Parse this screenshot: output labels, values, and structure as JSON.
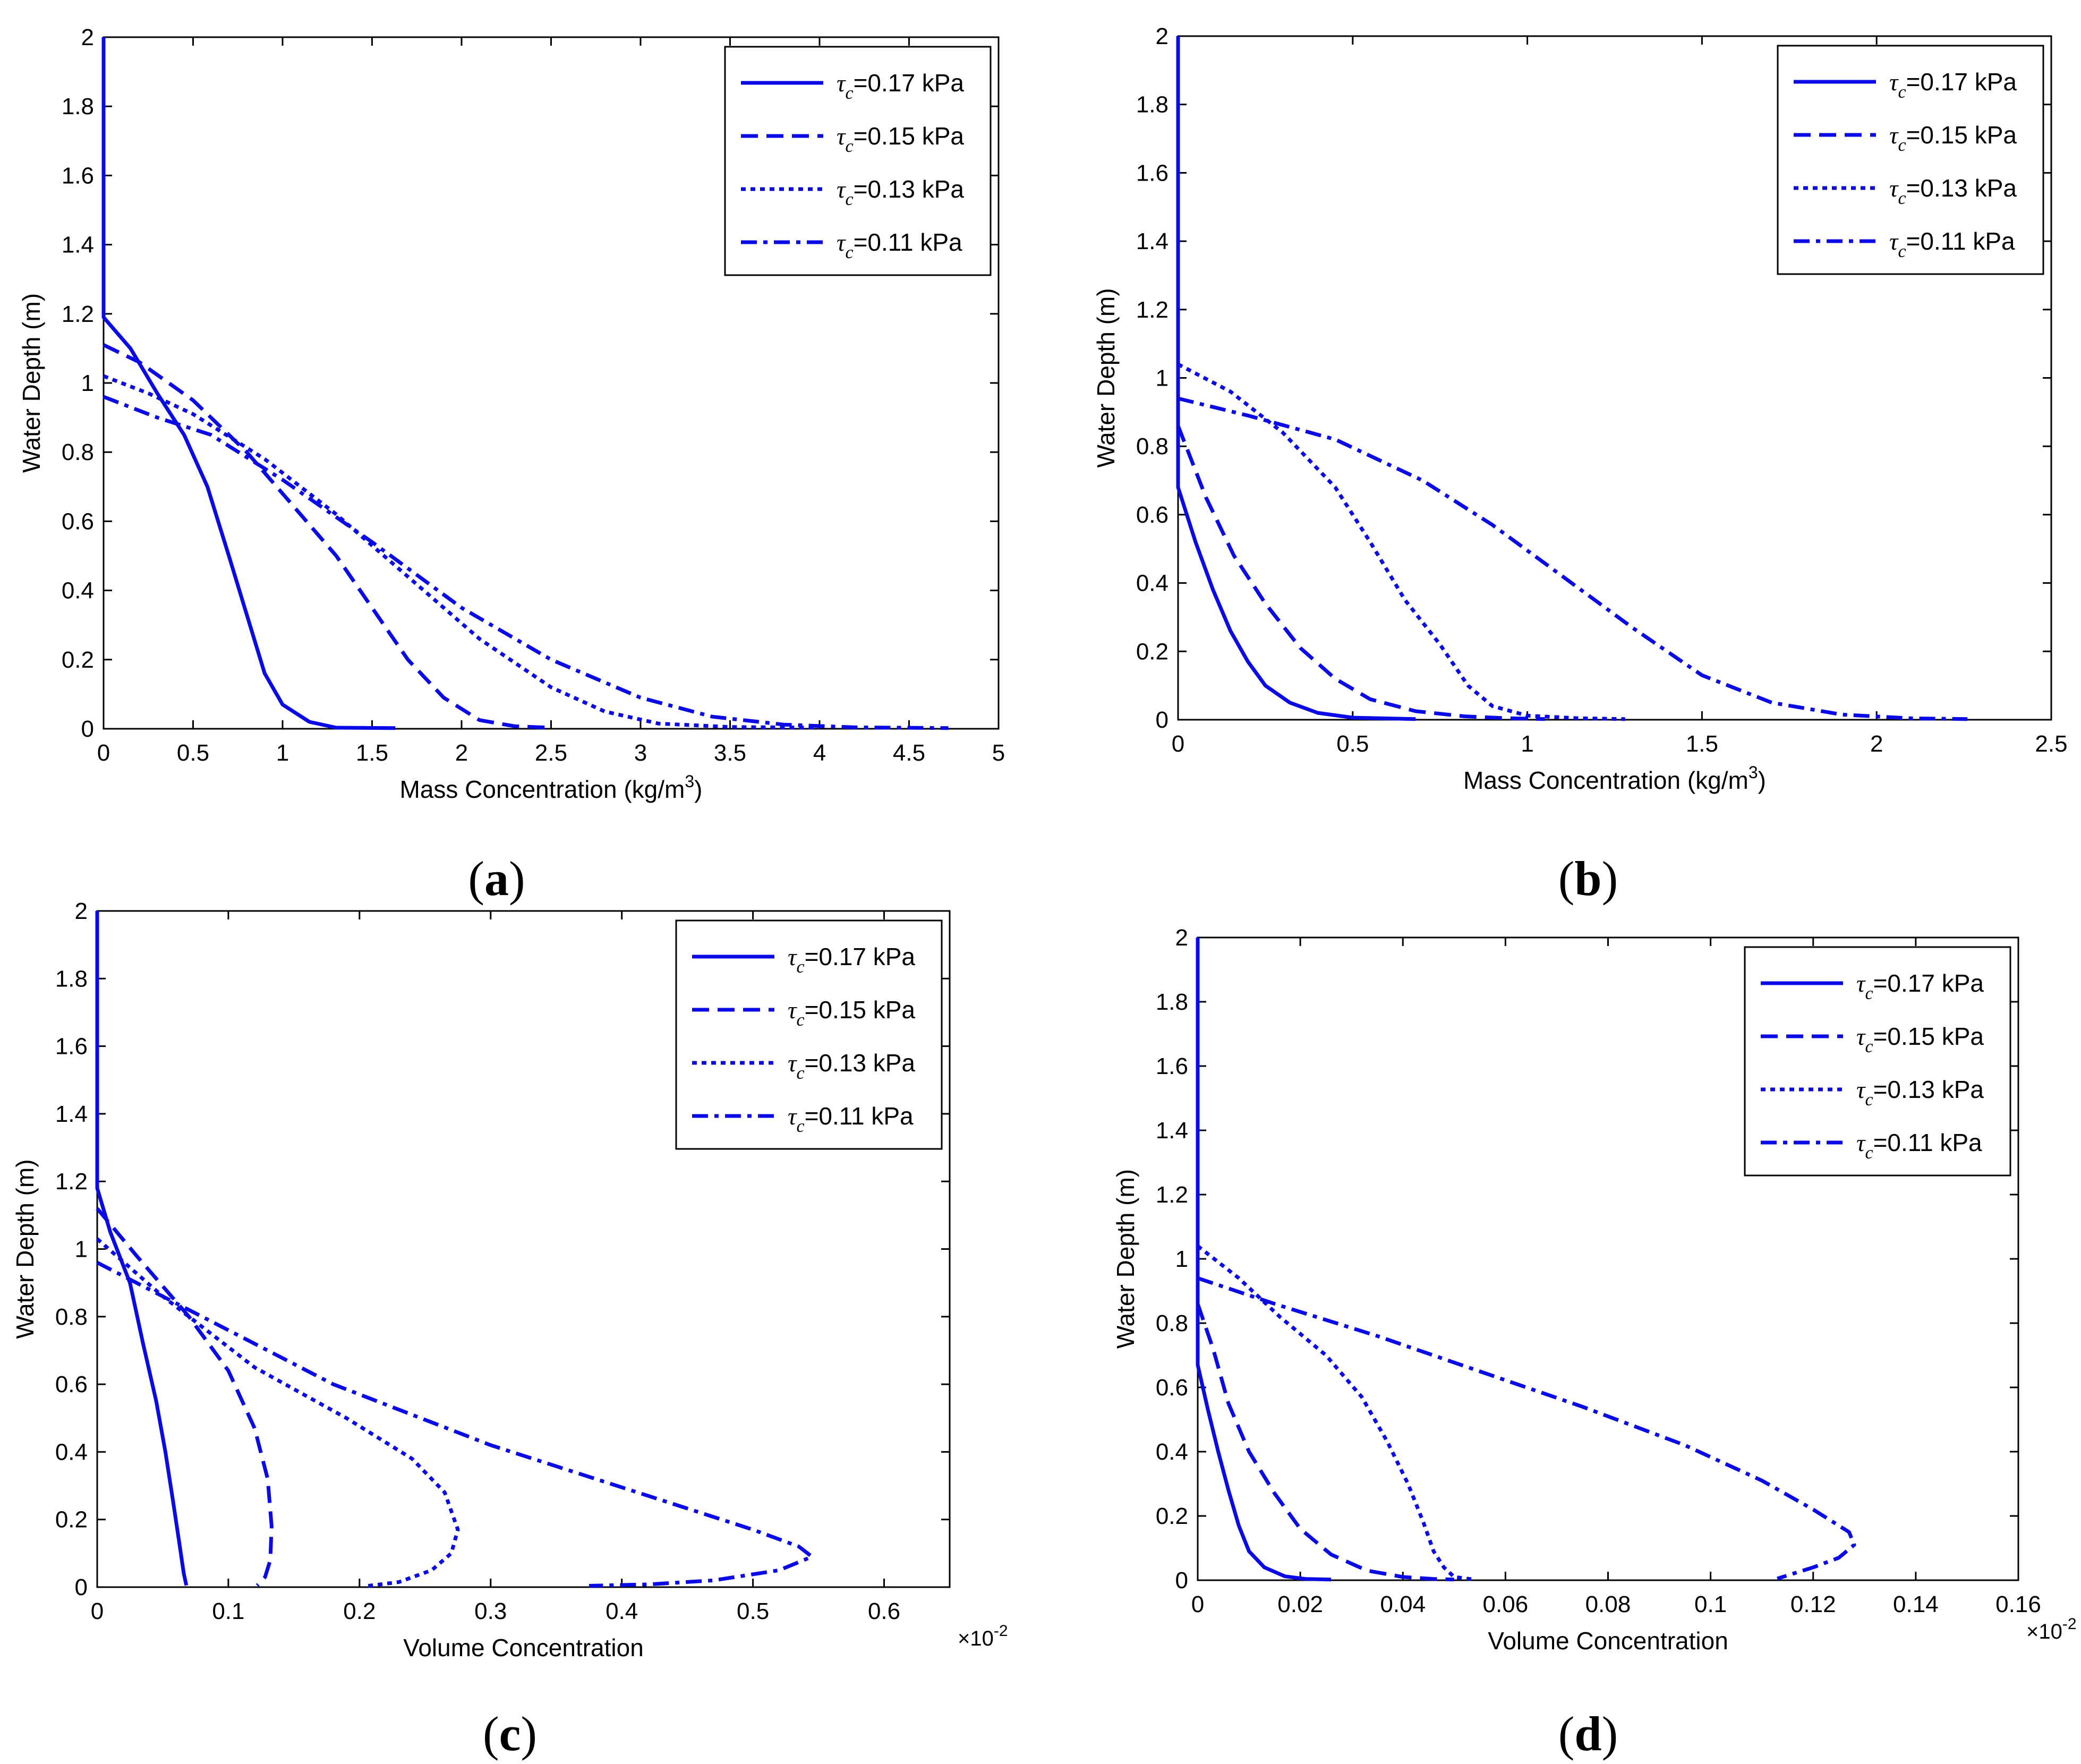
{
  "legend_entries": [
    {
      "sym": "τ",
      "sub": "c",
      "rest": "=0.17 kPa",
      "style": "solid"
    },
    {
      "sym": "τ",
      "sub": "c",
      "rest": "=0.15 kPa",
      "style": "dashed"
    },
    {
      "sym": "τ",
      "sub": "c",
      "rest": "=0.13 kPa",
      "style": "dotted"
    },
    {
      "sym": "τ",
      "sub": "c",
      "rest": "=0.11 kPa",
      "style": "dashdot"
    }
  ],
  "colors": {
    "series": "#0a0ae6",
    "axes": "#000000",
    "background": "#ffffff"
  },
  "chart_data": [
    {
      "panel": "a",
      "type": "line",
      "xlabel": "Mass Concentration (kg/m",
      "xlabel_sup": "3",
      "xlabel_end": ")",
      "ylabel": "Water Depth (m)",
      "xlim": [
        0,
        5
      ],
      "ylim": [
        0,
        2
      ],
      "xticks": [
        "0",
        "0.5",
        "1",
        "1.5",
        "2",
        "2.5",
        "3",
        "3.5",
        "4",
        "4.5",
        "5"
      ],
      "xtick_values": [
        0,
        0.5,
        1,
        1.5,
        2,
        2.5,
        3,
        3.5,
        4,
        4.5,
        5
      ],
      "yticks": [
        "0",
        "0.2",
        "0.4",
        "0.6",
        "0.8",
        "1",
        "1.2",
        "1.4",
        "1.6",
        "1.8",
        "2"
      ],
      "ytick_values": [
        0,
        0.2,
        0.4,
        0.6,
        0.8,
        1,
        1.2,
        1.4,
        1.6,
        1.8,
        2
      ],
      "exponent": "",
      "legend_position": "top-right",
      "series": [
        {
          "name": "τc=0.17 kPa",
          "style": "solid",
          "points": [
            [
              0,
              2
            ],
            [
              0,
              1.19
            ],
            [
              0.15,
              1.1
            ],
            [
              0.3,
              0.97
            ],
            [
              0.45,
              0.85
            ],
            [
              0.58,
              0.7
            ],
            [
              0.7,
              0.5
            ],
            [
              0.8,
              0.33
            ],
            [
              0.9,
              0.16
            ],
            [
              1.0,
              0.07
            ],
            [
              1.15,
              0.02
            ],
            [
              1.3,
              0.003
            ],
            [
              1.63,
              0.002
            ]
          ]
        },
        {
          "name": "τc=0.15 kPa",
          "style": "dashed",
          "points": [
            [
              0,
              1.11
            ],
            [
              0.2,
              1.06
            ],
            [
              0.5,
              0.95
            ],
            [
              0.8,
              0.8
            ],
            [
              1.05,
              0.65
            ],
            [
              1.3,
              0.5
            ],
            [
              1.5,
              0.35
            ],
            [
              1.7,
              0.2
            ],
            [
              1.9,
              0.09
            ],
            [
              2.1,
              0.025
            ],
            [
              2.3,
              0.007
            ],
            [
              2.5,
              0.003
            ]
          ]
        },
        {
          "name": "τc=0.13 kPa",
          "style": "dotted",
          "points": [
            [
              0,
              1.02
            ],
            [
              0.25,
              0.97
            ],
            [
              0.5,
              0.91
            ],
            [
              0.9,
              0.78
            ],
            [
              1.3,
              0.62
            ],
            [
              1.7,
              0.44
            ],
            [
              2.1,
              0.26
            ],
            [
              2.5,
              0.12
            ],
            [
              2.8,
              0.05
            ],
            [
              3.1,
              0.015
            ],
            [
              3.5,
              0.005
            ],
            [
              4.0,
              0.003
            ]
          ]
        },
        {
          "name": "τc=0.11 kPa",
          "style": "dashdot",
          "points": [
            [
              0,
              0.96
            ],
            [
              0.3,
              0.9
            ],
            [
              0.6,
              0.85
            ],
            [
              1.0,
              0.72
            ],
            [
              1.5,
              0.54
            ],
            [
              2.0,
              0.35
            ],
            [
              2.5,
              0.2
            ],
            [
              3.0,
              0.09
            ],
            [
              3.4,
              0.035
            ],
            [
              3.8,
              0.012
            ],
            [
              4.2,
              0.004
            ],
            [
              4.72,
              0.002
            ]
          ]
        }
      ]
    },
    {
      "panel": "b",
      "type": "line",
      "xlabel": "Mass Concentration (kg/m",
      "xlabel_sup": "3",
      "xlabel_end": ")",
      "ylabel": "Water Depth (m)",
      "xlim": [
        0,
        2.5
      ],
      "ylim": [
        0,
        2
      ],
      "xticks": [
        "0",
        "0.5",
        "1",
        "1.5",
        "2",
        "2.5"
      ],
      "xtick_values": [
        0,
        0.5,
        1,
        1.5,
        2,
        2.5
      ],
      "yticks": [
        "0",
        "0.2",
        "0.4",
        "0.6",
        "0.8",
        "1",
        "1.2",
        "1.4",
        "1.6",
        "1.8",
        "2"
      ],
      "ytick_values": [
        0,
        0.2,
        0.4,
        0.6,
        0.8,
        1,
        1.2,
        1.4,
        1.6,
        1.8,
        2
      ],
      "exponent": "",
      "legend_position": "top-right",
      "series": [
        {
          "name": "τc=0.17 kPa",
          "style": "solid",
          "points": [
            [
              0,
              2
            ],
            [
              0,
              0.68
            ],
            [
              0.05,
              0.52
            ],
            [
              0.1,
              0.38
            ],
            [
              0.15,
              0.26
            ],
            [
              0.2,
              0.17
            ],
            [
              0.25,
              0.1
            ],
            [
              0.32,
              0.05
            ],
            [
              0.4,
              0.02
            ],
            [
              0.5,
              0.006
            ],
            [
              0.68,
              0.002
            ]
          ]
        },
        {
          "name": "τc=0.15 kPa",
          "style": "dashed",
          "points": [
            [
              0,
              0.86
            ],
            [
              0.08,
              0.65
            ],
            [
              0.16,
              0.48
            ],
            [
              0.25,
              0.34
            ],
            [
              0.35,
              0.21
            ],
            [
              0.45,
              0.12
            ],
            [
              0.55,
              0.06
            ],
            [
              0.68,
              0.025
            ],
            [
              0.82,
              0.01
            ],
            [
              0.95,
              0.004
            ],
            [
              1.05,
              0.002
            ]
          ]
        },
        {
          "name": "τc=0.13 kPa",
          "style": "dotted",
          "points": [
            [
              0,
              1.04
            ],
            [
              0.15,
              0.96
            ],
            [
              0.3,
              0.84
            ],
            [
              0.45,
              0.68
            ],
            [
              0.55,
              0.52
            ],
            [
              0.65,
              0.35
            ],
            [
              0.75,
              0.22
            ],
            [
              0.83,
              0.1
            ],
            [
              0.9,
              0.04
            ],
            [
              1.0,
              0.012
            ],
            [
              1.15,
              0.004
            ],
            [
              1.28,
              0.002
            ]
          ]
        },
        {
          "name": "τc=0.11 kPa",
          "style": "dashdot",
          "points": [
            [
              0,
              0.94
            ],
            [
              0.2,
              0.89
            ],
            [
              0.45,
              0.82
            ],
            [
              0.7,
              0.7
            ],
            [
              0.9,
              0.57
            ],
            [
              1.1,
              0.42
            ],
            [
              1.3,
              0.27
            ],
            [
              1.5,
              0.13
            ],
            [
              1.7,
              0.05
            ],
            [
              1.9,
              0.015
            ],
            [
              2.1,
              0.004
            ],
            [
              2.26,
              0.002
            ]
          ]
        }
      ]
    },
    {
      "panel": "c",
      "type": "line",
      "xlabel": "Volume Concentration",
      "xlabel_sup": "",
      "xlabel_end": "",
      "ylabel": "Water Depth (m)",
      "xlim": [
        0,
        0.65
      ],
      "ylim": [
        0,
        2
      ],
      "xticks": [
        "0",
        "0.1",
        "0.2",
        "0.3",
        "0.4",
        "0.5",
        "0.6"
      ],
      "xtick_values": [
        0,
        0.1,
        0.2,
        0.3,
        0.4,
        0.5,
        0.6
      ],
      "yticks": [
        "0",
        "0.2",
        "0.4",
        "0.6",
        "0.8",
        "1",
        "1.2",
        "1.4",
        "1.6",
        "1.8",
        "2"
      ],
      "ytick_values": [
        0,
        0.2,
        0.4,
        0.6,
        0.8,
        1,
        1.2,
        1.4,
        1.6,
        1.8,
        2
      ],
      "exponent": "×10",
      "exponent_sup": "-2",
      "legend_position": "top-right",
      "series": [
        {
          "name": "τc=0.17 kPa",
          "style": "solid",
          "points": [
            [
              0,
              2
            ],
            [
              0,
              1.18
            ],
            [
              0.01,
              1.05
            ],
            [
              0.025,
              0.9
            ],
            [
              0.035,
              0.72
            ],
            [
              0.045,
              0.55
            ],
            [
              0.052,
              0.4
            ],
            [
              0.058,
              0.25
            ],
            [
              0.063,
              0.12
            ],
            [
              0.066,
              0.04
            ],
            [
              0.068,
              0.005
            ]
          ]
        },
        {
          "name": "τc=0.15 kPa",
          "style": "dashed",
          "points": [
            [
              0,
              1.12
            ],
            [
              0.03,
              0.98
            ],
            [
              0.07,
              0.8
            ],
            [
              0.1,
              0.64
            ],
            [
              0.12,
              0.47
            ],
            [
              0.13,
              0.32
            ],
            [
              0.133,
              0.18
            ],
            [
              0.132,
              0.08
            ],
            [
              0.128,
              0.03
            ],
            [
              0.122,
              0.005
            ]
          ]
        },
        {
          "name": "τc=0.13 kPa",
          "style": "dotted",
          "points": [
            [
              0,
              1.03
            ],
            [
              0.05,
              0.86
            ],
            [
              0.12,
              0.65
            ],
            [
              0.19,
              0.5
            ],
            [
              0.24,
              0.38
            ],
            [
              0.265,
              0.28
            ],
            [
              0.275,
              0.17
            ],
            [
              0.27,
              0.1
            ],
            [
              0.255,
              0.05
            ],
            [
              0.23,
              0.015
            ],
            [
              0.205,
              0.003
            ]
          ]
        },
        {
          "name": "τc=0.11 kPa",
          "style": "dashdot",
          "points": [
            [
              0,
              0.96
            ],
            [
              0.08,
              0.8
            ],
            [
              0.18,
              0.6
            ],
            [
              0.3,
              0.42
            ],
            [
              0.42,
              0.27
            ],
            [
              0.5,
              0.17
            ],
            [
              0.535,
              0.12
            ],
            [
              0.545,
              0.09
            ],
            [
              0.52,
              0.05
            ],
            [
              0.47,
              0.02
            ],
            [
              0.42,
              0.008
            ],
            [
              0.375,
              0.004
            ]
          ]
        }
      ]
    },
    {
      "panel": "d",
      "type": "line",
      "xlabel": "Volume Concentration",
      "xlabel_sup": "",
      "xlabel_end": "",
      "ylabel": "Water Depth (m)",
      "xlim": [
        0,
        0.16
      ],
      "ylim": [
        0,
        2
      ],
      "xticks": [
        "0",
        "0.02",
        "0.04",
        "0.06",
        "0.08",
        "0.1",
        "0.12",
        "0.14",
        "0.16"
      ],
      "xtick_values": [
        0,
        0.02,
        0.04,
        0.06,
        0.08,
        0.1,
        0.12,
        0.14,
        0.16
      ],
      "yticks": [
        "0",
        "0.2",
        "0.4",
        "0.6",
        "0.8",
        "1",
        "1.2",
        "1.4",
        "1.6",
        "1.8",
        "2"
      ],
      "ytick_values": [
        0,
        0.2,
        0.4,
        0.6,
        0.8,
        1,
        1.2,
        1.4,
        1.6,
        1.8,
        2
      ],
      "exponent": "×10",
      "exponent_sup": "-2",
      "legend_position": "top-right",
      "series": [
        {
          "name": "τc=0.17 kPa",
          "style": "solid",
          "points": [
            [
              0,
              2
            ],
            [
              0,
              0.67
            ],
            [
              0.002,
              0.53
            ],
            [
              0.004,
              0.4
            ],
            [
              0.006,
              0.28
            ],
            [
              0.008,
              0.17
            ],
            [
              0.01,
              0.09
            ],
            [
              0.013,
              0.04
            ],
            [
              0.017,
              0.012
            ],
            [
              0.021,
              0.004
            ],
            [
              0.026,
              0.002
            ]
          ]
        },
        {
          "name": "τc=0.15 kPa",
          "style": "dashed",
          "points": [
            [
              0,
              0.86
            ],
            [
              0.003,
              0.72
            ],
            [
              0.006,
              0.55
            ],
            [
              0.01,
              0.4
            ],
            [
              0.015,
              0.27
            ],
            [
              0.02,
              0.16
            ],
            [
              0.026,
              0.08
            ],
            [
              0.033,
              0.03
            ],
            [
              0.04,
              0.01
            ],
            [
              0.046,
              0.004
            ],
            [
              0.05,
              0.002
            ]
          ]
        },
        {
          "name": "τc=0.13 kPa",
          "style": "dotted",
          "points": [
            [
              0,
              1.04
            ],
            [
              0.008,
              0.94
            ],
            [
              0.016,
              0.82
            ],
            [
              0.025,
              0.7
            ],
            [
              0.032,
              0.57
            ],
            [
              0.037,
              0.43
            ],
            [
              0.041,
              0.3
            ],
            [
              0.044,
              0.18
            ],
            [
              0.046,
              0.09
            ],
            [
              0.048,
              0.04
            ],
            [
              0.05,
              0.01
            ],
            [
              0.054,
              0.002
            ]
          ]
        },
        {
          "name": "τc=0.11 kPa",
          "style": "dashdot",
          "points": [
            [
              0,
              0.94
            ],
            [
              0.015,
              0.86
            ],
            [
              0.035,
              0.76
            ],
            [
              0.055,
              0.65
            ],
            [
              0.075,
              0.54
            ],
            [
              0.095,
              0.42
            ],
            [
              0.11,
              0.31
            ],
            [
              0.12,
              0.22
            ],
            [
              0.127,
              0.15
            ],
            [
              0.128,
              0.11
            ],
            [
              0.125,
              0.07
            ],
            [
              0.12,
              0.04
            ],
            [
              0.116,
              0.02
            ],
            [
              0.113,
              0.005
            ]
          ]
        }
      ]
    }
  ],
  "panel_labels": [
    {
      "open": "(",
      "letter": "a",
      "close": ")"
    },
    {
      "open": "(",
      "letter": "b",
      "close": ")"
    },
    {
      "open": "(",
      "letter": "c",
      "close": ")"
    },
    {
      "open": "(",
      "letter": "d",
      "close": ")"
    }
  ]
}
